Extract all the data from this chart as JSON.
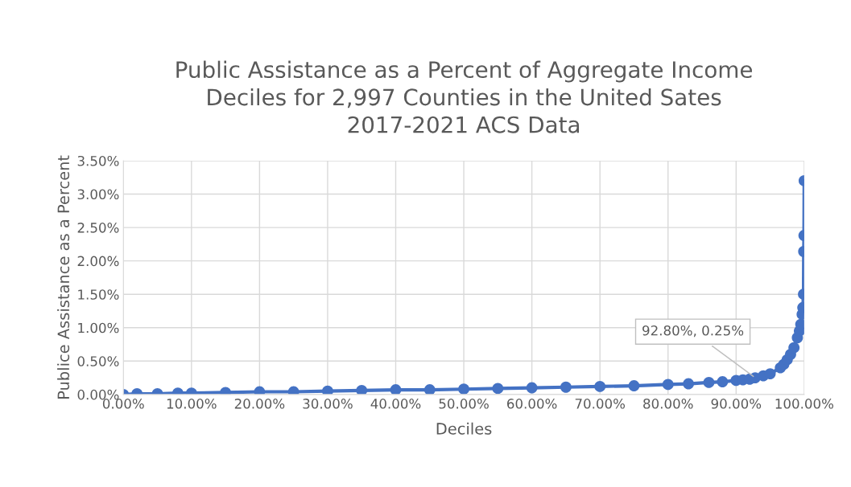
{
  "chart_data": {
    "type": "line",
    "title": "Public Assistance as a Percent of Aggregate Income\nDeciles for 2,997 Counties in the United Sates\n2017-2021 ACS Data",
    "xlabel": "Deciles",
    "ylabel": "Publice Assistance as a Percent",
    "series": [
      {
        "color": "#4472c4",
        "x": [
          0,
          2,
          5,
          8,
          10,
          15,
          20,
          25,
          30,
          35,
          40,
          45,
          50,
          55,
          60,
          65,
          70,
          75,
          80,
          83,
          86,
          88,
          90,
          91,
          92,
          92.8,
          94,
          95,
          96.5,
          97,
          97.5,
          98,
          98.5,
          99,
          99.3,
          99.5,
          99.7,
          99.8,
          99.9,
          99.93,
          99.97,
          100
        ],
        "values": [
          0.0,
          0.01,
          0.01,
          0.02,
          0.02,
          0.03,
          0.04,
          0.04,
          0.05,
          0.06,
          0.07,
          0.07,
          0.08,
          0.09,
          0.1,
          0.11,
          0.12,
          0.13,
          0.15,
          0.16,
          0.18,
          0.19,
          0.21,
          0.22,
          0.23,
          0.25,
          0.28,
          0.31,
          0.4,
          0.45,
          0.52,
          0.6,
          0.7,
          0.85,
          0.95,
          1.05,
          1.2,
          1.3,
          1.5,
          2.14,
          2.38,
          3.2
        ]
      }
    ],
    "xlim": [
      0,
      100
    ],
    "xticks": [
      {
        "value": 0,
        "label": "0.00%"
      },
      {
        "value": 10,
        "label": "10.00%"
      },
      {
        "value": 20,
        "label": "20.00%"
      },
      {
        "value": 30,
        "label": "30.00%"
      },
      {
        "value": 40,
        "label": "40.00%"
      },
      {
        "value": 50,
        "label": "50.00%"
      },
      {
        "value": 60,
        "label": "60.00%"
      },
      {
        "value": 70,
        "label": "70.00%"
      },
      {
        "value": 80,
        "label": "80.00%"
      },
      {
        "value": 90,
        "label": "90.00%"
      },
      {
        "value": 100,
        "label": "100.00%"
      }
    ],
    "ylim": [
      0,
      3.5
    ],
    "yticks": [
      {
        "value": 0,
        "label": "0.00%"
      },
      {
        "value": 0.5,
        "label": "0.50%"
      },
      {
        "value": 1,
        "label": "1.00%"
      },
      {
        "value": 1.5,
        "label": "1.50%"
      },
      {
        "value": 2,
        "label": "2.00%"
      },
      {
        "value": 2.5,
        "label": "2.50%"
      },
      {
        "value": 3,
        "label": "3.00%"
      },
      {
        "value": 3.5,
        "label": "3.50%"
      }
    ],
    "annotations": [
      {
        "text": "92.80%, 0.25%",
        "x": 92.8,
        "y": 0.25
      }
    ],
    "grid": true,
    "legend": false,
    "marker": "circle",
    "line_style": "solid"
  }
}
